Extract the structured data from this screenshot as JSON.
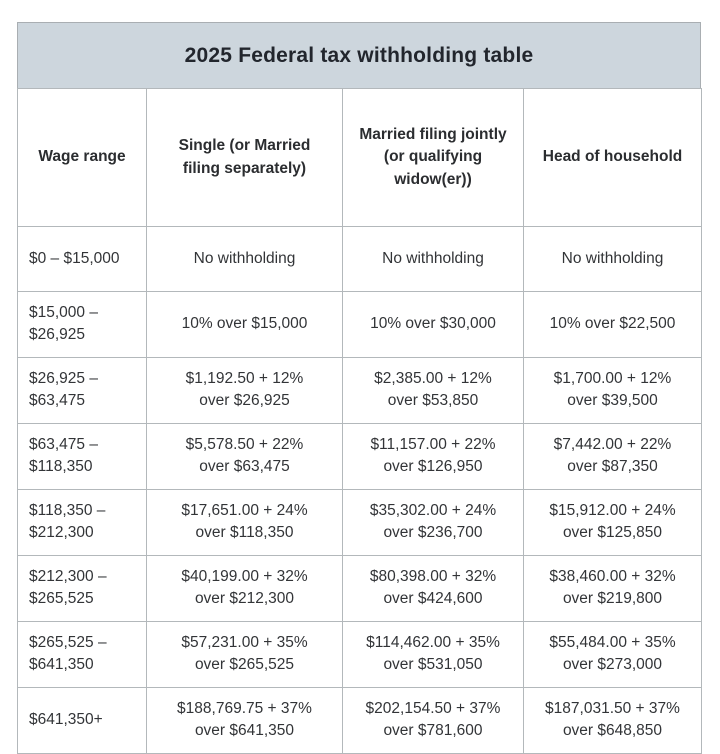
{
  "title": "2025 Federal tax withholding table",
  "colors": {
    "title_bar_bg": "#cdd6dd",
    "border": "#b3b8bb",
    "outer_border": "#a9aeb2",
    "text": "#323437",
    "title_text": "#22262d",
    "cell_bg": "#ffffff"
  },
  "table": {
    "columns": [
      "Wage range",
      "Single (or Married\nfiling separately)",
      "Married filing jointly\n(or qualifying\nwidow(er))",
      "Head of household"
    ],
    "rows": [
      [
        "$0 – $15,000",
        "No withholding",
        "No withholding",
        "No withholding"
      ],
      [
        "$15,000 –\n$26,925",
        "10% over $15,000",
        "10% over $30,000",
        "10% over $22,500"
      ],
      [
        "$26,925 –\n$63,475",
        "$1,192.50 + 12%\nover $26,925",
        "$2,385.00 + 12%\nover $53,850",
        "$1,700.00 + 12%\nover $39,500"
      ],
      [
        "$63,475 –\n$118,350",
        "$5,578.50 + 22%\nover $63,475",
        "$11,157.00 + 22%\nover $126,950",
        "$7,442.00 + 22%\nover $87,350"
      ],
      [
        "$118,350 –\n$212,300",
        "$17,651.00 + 24%\nover $118,350",
        "$35,302.00 + 24%\nover $236,700",
        "$15,912.00 + 24%\nover $125,850"
      ],
      [
        "$212,300 –\n$265,525",
        "$40,199.00 + 32%\nover $212,300",
        "$80,398.00 + 32%\nover $424,600",
        "$38,460.00 + 32%\nover $219,800"
      ],
      [
        "$265,525 –\n$641,350",
        "$57,231.00 + 35%\nover $265,525",
        "$114,462.00 + 35%\nover $531,050",
        "$55,484.00 + 35%\nover $273,000"
      ],
      [
        "$641,350+",
        "$188,769.75 + 37%\nover $641,350",
        "$202,154.50 + 37%\nover $781,600",
        "$187,031.50 + 37%\nover $648,850"
      ]
    ]
  }
}
